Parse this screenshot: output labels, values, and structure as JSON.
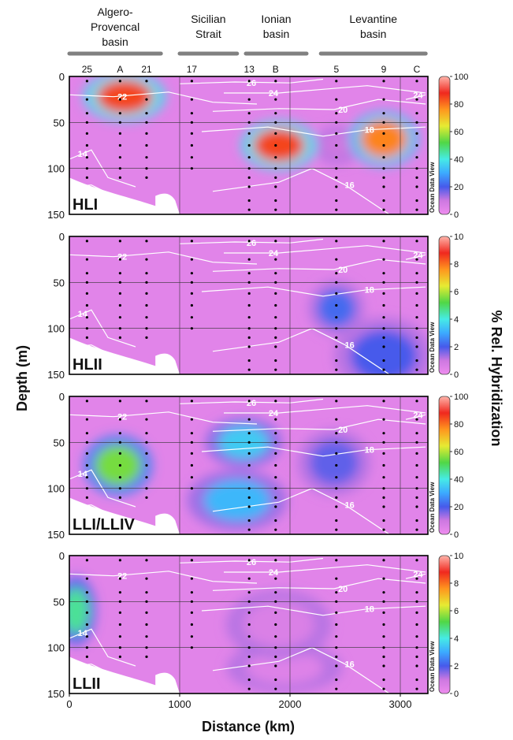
{
  "chart_data": {
    "type": "heatmap",
    "xlabel": "Distance (km)",
    "ylabel": "Depth (m)",
    "colorbar_label": "% Rel. Hybridization",
    "xlim": [
      0,
      3250
    ],
    "ylim": [
      150,
      0
    ],
    "x_ticks": [
      "0",
      "1000",
      "2000",
      "3000"
    ],
    "y_ticks": [
      "0",
      "50",
      "100",
      "150"
    ],
    "basins": [
      {
        "name": "Algero-\nProvencal\nbasin",
        "x_from": 0,
        "x_to": 830
      },
      {
        "name": "Sicilian\nStrait",
        "x_from": 1000,
        "x_to": 1520
      },
      {
        "name": "Ionian\nbasin",
        "x_from": 1600,
        "x_to": 2150
      },
      {
        "name": "Levantine\nbasin",
        "x_from": 2280,
        "x_to": 3230
      }
    ],
    "stations": [
      {
        "label": "25",
        "x": 160
      },
      {
        "label": "A",
        "x": 460
      },
      {
        "label": "21",
        "x": 700
      },
      {
        "label": "17",
        "x": 1110
      },
      {
        "label": "13",
        "x": 1630
      },
      {
        "label": "B",
        "x": 1870
      },
      {
        "label": "5",
        "x": 2420
      },
      {
        "label": "9",
        "x": 2850
      },
      {
        "label": "C",
        "x": 3150
      }
    ],
    "watermark": "Ocean Data View",
    "temperature_isotherms": [
      "26",
      "24",
      "22",
      "20",
      "18",
      "16",
      "14"
    ],
    "panels": [
      {
        "name": "HLI",
        "colorbar": {
          "min": 0,
          "max": 100,
          "ticks": [
            "0",
            "20",
            "40",
            "60",
            "80",
            "100"
          ]
        },
        "hotspots": [
          {
            "x": 500,
            "depth": 22,
            "value": 85,
            "rx": 250,
            "ry": 18
          },
          {
            "x": 1900,
            "depth": 75,
            "value": 85,
            "rx": 230,
            "ry": 18
          },
          {
            "x": 2850,
            "depth": 68,
            "value": 78,
            "rx": 210,
            "ry": 20
          },
          {
            "x": 2430,
            "depth": 75,
            "value": 10,
            "rx": 140,
            "ry": 14
          }
        ]
      },
      {
        "name": "HLII",
        "colorbar": {
          "min": 0,
          "max": 10,
          "ticks": [
            "0",
            "2",
            "4",
            "6",
            "8",
            "10"
          ]
        },
        "hotspots": [
          {
            "x": 2420,
            "depth": 78,
            "value": 2.2,
            "rx": 170,
            "ry": 20
          },
          {
            "x": 2850,
            "depth": 130,
            "value": 2.0,
            "rx": 300,
            "ry": 28
          }
        ]
      },
      {
        "name": "LLI/LLIV",
        "colorbar": {
          "min": 0,
          "max": 100,
          "ticks": [
            "0",
            "20",
            "40",
            "60",
            "80",
            "100"
          ]
        },
        "hotspots": [
          {
            "x": 440,
            "depth": 75,
            "value": 55,
            "rx": 210,
            "ry": 22
          },
          {
            "x": 1580,
            "depth": 50,
            "value": 35,
            "rx": 230,
            "ry": 18
          },
          {
            "x": 1520,
            "depth": 113,
            "value": 32,
            "rx": 300,
            "ry": 22
          },
          {
            "x": 2400,
            "depth": 72,
            "value": 18,
            "rx": 220,
            "ry": 24
          }
        ]
      },
      {
        "name": "LLII",
        "colorbar": {
          "min": 0,
          "max": 10,
          "ticks": [
            "0",
            "2",
            "4",
            "6",
            "8",
            "10"
          ]
        },
        "hotspots": [
          {
            "x": 60,
            "depth": 60,
            "value": 4.6,
            "rx": 120,
            "ry": 25
          },
          {
            "x": 1900,
            "depth": 75,
            "value": 0.6,
            "rx": 320,
            "ry": 25
          },
          {
            "x": 1950,
            "depth": 122,
            "value": 0.5,
            "rx": 350,
            "ry": 18
          }
        ]
      }
    ]
  }
}
